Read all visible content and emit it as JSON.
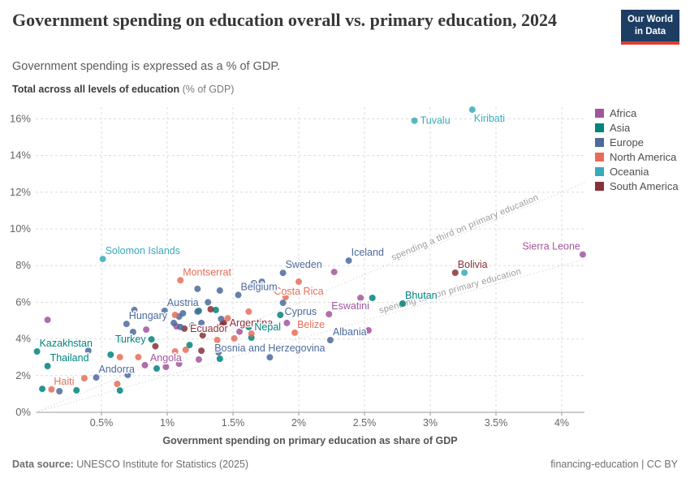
{
  "header": {
    "title": "Government spending on education overall vs. primary education, 2024",
    "subtitle": "Government spending is expressed as a % of GDP.",
    "unit_label_bold": "Total across all levels of education",
    "unit_label_rest": " (% of GDP)",
    "logo": {
      "line1": "Our World",
      "line2": "in Data"
    }
  },
  "footer": {
    "source_label": "Data source:",
    "source_text": " UNESCO Institute for Statistics (2025)",
    "license_text": "financing-education | CC BY"
  },
  "chart_data": {
    "type": "scatter",
    "x_axis_title": "Government spending on primary education as share of GDP",
    "xlim": [
      0,
      4.17
    ],
    "ylim": [
      0,
      16.7
    ],
    "grid": true,
    "x_ticks": {
      "values": [
        0.5,
        1,
        1.5,
        2,
        2.5,
        3,
        3.5,
        4
      ],
      "labels": [
        "0.5%",
        "1%",
        "1.5%",
        "2%",
        "2.5%",
        "3%",
        "3.5%",
        "4%"
      ]
    },
    "y_ticks": {
      "values": [
        0,
        2,
        4,
        6,
        8,
        10,
        12,
        14,
        16
      ],
      "labels": [
        "0%",
        "2%",
        "4%",
        "6%",
        "8%",
        "10%",
        "12%",
        "14%",
        "16%"
      ]
    },
    "legend_position": "right",
    "legend": [
      {
        "label": "Africa",
        "color": "#a2559c"
      },
      {
        "label": "Asia",
        "color": "#00847e"
      },
      {
        "label": "Europe",
        "color": "#4c6a9c"
      },
      {
        "label": "North America",
        "color": "#e56e5a"
      },
      {
        "label": "Oceania",
        "color": "#38aaba"
      },
      {
        "label": "South America",
        "color": "#883039"
      }
    ],
    "colors": {
      "Africa": "#a2559c",
      "Asia": "#00847e",
      "Europe": "#4c6a9c",
      "North America": "#e56e5a",
      "Oceania": "#38aaba",
      "South America": "#883039"
    },
    "reference_lines": [
      {
        "total_to_primary_ratio": 3,
        "text": "spending a third on primary education"
      },
      {
        "total_to_primary_ratio": 2,
        "text": "spending half on primary education"
      }
    ],
    "points": [
      {
        "country": "Tuvalu",
        "continent": "Oceania",
        "x": 2.88,
        "y": 15.9,
        "label_pos": "right"
      },
      {
        "country": "Kiribati",
        "continent": "Oceania",
        "x": 3.32,
        "y": 16.5,
        "label_pos": "below-right"
      },
      {
        "country": "Solomon Islands",
        "continent": "Oceania",
        "x": 0.51,
        "y": 8.36,
        "label_pos": "above-right"
      },
      {
        "country": "Iceland",
        "continent": "Europe",
        "x": 2.38,
        "y": 8.27,
        "label_pos": "above-right"
      },
      {
        "country": "Sierra Leone",
        "continent": "Africa",
        "x": 4.16,
        "y": 8.6,
        "label_pos": "above-left"
      },
      {
        "country": "Bolivia",
        "continent": "South America",
        "x": 3.19,
        "y": 7.61,
        "label_pos": "above-right"
      },
      {
        "country": "Sweden",
        "continent": "Europe",
        "x": 1.88,
        "y": 7.6,
        "label_pos": "above-right"
      },
      {
        "country": "Montserrat",
        "continent": "North America",
        "x": 1.1,
        "y": 7.2,
        "label_pos": "above-right"
      },
      {
        "country": "Costa Rica",
        "continent": "North America",
        "x": 2.0,
        "y": 7.12,
        "label_pos": "below"
      },
      {
        "country": "Belgium",
        "continent": "Europe",
        "x": 1.54,
        "y": 6.4,
        "label_pos": "above-right"
      },
      {
        "country": "Cyprus",
        "continent": "Europe",
        "x": 1.88,
        "y": 5.97,
        "label_pos": "below-right"
      },
      {
        "country": "Eswatini",
        "continent": "Africa",
        "x": 2.23,
        "y": 5.35,
        "label_pos": "above-right"
      },
      {
        "country": "Bhutan",
        "continent": "Asia",
        "x": 2.79,
        "y": 5.93,
        "label_pos": "above-right"
      },
      {
        "country": "Austria",
        "continent": "Europe",
        "x": 0.98,
        "y": 5.53,
        "label_pos": "above-right"
      },
      {
        "country": "Hungary",
        "continent": "Europe",
        "x": 0.69,
        "y": 4.82,
        "label_pos": "above-right"
      },
      {
        "country": "Turkey",
        "continent": "Asia",
        "x": 0.88,
        "y": 3.98,
        "label_pos": "left"
      },
      {
        "country": "Argentina",
        "continent": "South America",
        "x": 1.43,
        "y": 4.87,
        "label_pos": "right"
      },
      {
        "country": "Ecuador",
        "continent": "South America",
        "x": 1.13,
        "y": 4.56,
        "label_pos": "right"
      },
      {
        "country": "Nepal",
        "continent": "Asia",
        "x": 1.62,
        "y": 4.65,
        "label_pos": "right"
      },
      {
        "country": "Belize",
        "continent": "North America",
        "x": 1.97,
        "y": 4.34,
        "label_pos": "above-right"
      },
      {
        "country": "Albania",
        "continent": "Europe",
        "x": 2.24,
        "y": 3.94,
        "label_pos": "above-right"
      },
      {
        "country": "Bosnia and Herzegovina",
        "continent": "Europe",
        "x": 1.78,
        "y": 3.0,
        "label_pos": "above"
      },
      {
        "country": "Angola",
        "continent": "Africa",
        "x": 0.99,
        "y": 2.48,
        "label_pos": "above"
      },
      {
        "country": "Kazakhstan",
        "continent": "Asia",
        "x": 0.01,
        "y": 3.32,
        "label_pos": "above-right"
      },
      {
        "country": "Thailand",
        "continent": "Asia",
        "x": 0.09,
        "y": 2.52,
        "label_pos": "above-right"
      },
      {
        "country": "Andorra",
        "continent": "Europe",
        "x": 0.46,
        "y": 1.9,
        "label_pos": "above-right"
      },
      {
        "country": "Haiti",
        "continent": "North America",
        "x": 0.12,
        "y": 1.25,
        "label_pos": "above-right"
      },
      {
        "continent": "Africa",
        "x": 0.09,
        "y": 5.04
      },
      {
        "continent": "Africa",
        "x": 0.84,
        "y": 4.51
      },
      {
        "continent": "Africa",
        "x": 1.07,
        "y": 4.69
      },
      {
        "continent": "Africa",
        "x": 0.83,
        "y": 2.57
      },
      {
        "continent": "Africa",
        "x": 1.09,
        "y": 2.65
      },
      {
        "continent": "Africa",
        "x": 1.24,
        "y": 2.88
      },
      {
        "continent": "Africa",
        "x": 1.91,
        "y": 4.87
      },
      {
        "continent": "Africa",
        "x": 2.47,
        "y": 6.24
      },
      {
        "continent": "Africa",
        "x": 2.53,
        "y": 4.47
      },
      {
        "continent": "Africa",
        "x": 2.27,
        "y": 7.65
      },
      {
        "continent": "Africa",
        "x": 1.55,
        "y": 4.4
      },
      {
        "continent": "Asia",
        "x": 0.05,
        "y": 1.28
      },
      {
        "continent": "Asia",
        "x": 0.31,
        "y": 1.2
      },
      {
        "continent": "Asia",
        "x": 0.57,
        "y": 3.14
      },
      {
        "continent": "Asia",
        "x": 0.64,
        "y": 1.19
      },
      {
        "continent": "Asia",
        "x": 0.92,
        "y": 2.39
      },
      {
        "continent": "Asia",
        "x": 1.4,
        "y": 2.92
      },
      {
        "continent": "Asia",
        "x": 0.64,
        "y": 4.0
      },
      {
        "continent": "Asia",
        "x": 1.24,
        "y": 5.53
      },
      {
        "continent": "Asia",
        "x": 1.37,
        "y": 5.58
      },
      {
        "continent": "Asia",
        "x": 1.17,
        "y": 3.67
      },
      {
        "continent": "Asia",
        "x": 2.56,
        "y": 6.24
      },
      {
        "continent": "Asia",
        "x": 1.73,
        "y": 4.6
      },
      {
        "continent": "Asia",
        "x": 1.64,
        "y": 4.07
      },
      {
        "continent": "Asia",
        "x": 1.86,
        "y": 5.31
      },
      {
        "continent": "Europe",
        "x": 0.18,
        "y": 1.15
      },
      {
        "continent": "Europe",
        "x": 0.4,
        "y": 3.36
      },
      {
        "continent": "Europe",
        "x": 0.7,
        "y": 2.04
      },
      {
        "continent": "Europe",
        "x": 0.75,
        "y": 5.58
      },
      {
        "continent": "Europe",
        "x": 0.74,
        "y": 4.38
      },
      {
        "continent": "Europe",
        "x": 1.09,
        "y": 5.22
      },
      {
        "continent": "Europe",
        "x": 1.12,
        "y": 5.4
      },
      {
        "continent": "Europe",
        "x": 1.05,
        "y": 4.87
      },
      {
        "continent": "Europe",
        "x": 1.1,
        "y": 4.65
      },
      {
        "continent": "Europe",
        "x": 1.23,
        "y": 5.49
      },
      {
        "continent": "Europe",
        "x": 1.19,
        "y": 4.73
      },
      {
        "continent": "Europe",
        "x": 1.26,
        "y": 4.87
      },
      {
        "continent": "Europe",
        "x": 1.41,
        "y": 5.09
      },
      {
        "continent": "Europe",
        "x": 1.39,
        "y": 3.27
      },
      {
        "continent": "Europe",
        "x": 1.23,
        "y": 6.73
      },
      {
        "continent": "Europe",
        "x": 1.4,
        "y": 6.64
      },
      {
        "continent": "Europe",
        "x": 1.66,
        "y": 7.04
      },
      {
        "continent": "Europe",
        "x": 1.72,
        "y": 7.12
      },
      {
        "continent": "Europe",
        "x": 1.05,
        "y": 5.9
      },
      {
        "continent": "Europe",
        "x": 1.31,
        "y": 6.0
      },
      {
        "continent": "North America",
        "x": 0.37,
        "y": 1.86
      },
      {
        "continent": "North America",
        "x": 0.62,
        "y": 1.55
      },
      {
        "continent": "North America",
        "x": 0.64,
        "y": 3.01
      },
      {
        "continent": "North America",
        "x": 0.78,
        "y": 3.01
      },
      {
        "continent": "North America",
        "x": 1.06,
        "y": 3.32
      },
      {
        "continent": "North America",
        "x": 1.06,
        "y": 5.31
      },
      {
        "continent": "North America",
        "x": 1.14,
        "y": 3.41
      },
      {
        "continent": "North America",
        "x": 1.38,
        "y": 3.94
      },
      {
        "continent": "North America",
        "x": 1.46,
        "y": 5.13
      },
      {
        "continent": "North America",
        "x": 1.62,
        "y": 5.49
      },
      {
        "continent": "North America",
        "x": 1.64,
        "y": 4.29
      },
      {
        "continent": "North America",
        "x": 1.9,
        "y": 6.28
      },
      {
        "continent": "North America",
        "x": 1.51,
        "y": 4.03
      },
      {
        "continent": "South America",
        "x": 1.26,
        "y": 3.36
      },
      {
        "continent": "South America",
        "x": 1.33,
        "y": 5.62
      },
      {
        "continent": "South America",
        "x": 1.42,
        "y": 4.78
      },
      {
        "continent": "South America",
        "x": 1.27,
        "y": 4.2
      },
      {
        "continent": "South America",
        "x": 0.91,
        "y": 3.6
      },
      {
        "continent": "Oceania",
        "x": 3.26,
        "y": 7.61
      }
    ]
  }
}
